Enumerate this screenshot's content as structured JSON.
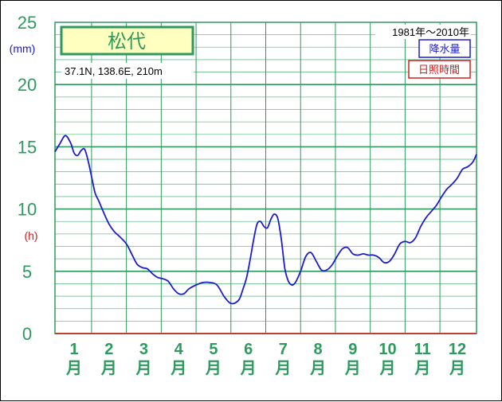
{
  "chart_data": {
    "type": "line",
    "title": "松代",
    "subtitle": "37.1N,  138.6E,  210m",
    "period": "1981年～2010年",
    "legend": [
      "降水量",
      "日照時間"
    ],
    "ylabel_top": "(mm)",
    "ylabel_mid": "(h)",
    "ylim": [
      0,
      25
    ],
    "yticks": [
      "0",
      "5",
      "10",
      "15",
      "20",
      "25"
    ],
    "xticks": [
      {
        "num": "1",
        "unit": "月"
      },
      {
        "num": "2",
        "unit": "月"
      },
      {
        "num": "3",
        "unit": "月"
      },
      {
        "num": "4",
        "unit": "月"
      },
      {
        "num": "5",
        "unit": "月"
      },
      {
        "num": "6",
        "unit": "月"
      },
      {
        "num": "7",
        "unit": "月"
      },
      {
        "num": "8",
        "unit": "月"
      },
      {
        "num": "9",
        "unit": "月"
      },
      {
        "num": "10",
        "unit": "月"
      },
      {
        "num": "11",
        "unit": "月"
      },
      {
        "num": "12",
        "unit": "月"
      }
    ],
    "xlim": [
      0.45,
      12.55
    ],
    "series": [
      {
        "name": "降水量",
        "color": "#1c1cd0",
        "x": [
          0.45,
          0.6,
          0.75,
          0.9,
          1.0,
          1.1,
          1.2,
          1.3,
          1.4,
          1.5,
          1.6,
          1.7,
          1.85,
          2.0,
          2.15,
          2.3,
          2.5,
          2.65,
          2.8,
          2.95,
          3.1,
          3.25,
          3.4,
          3.55,
          3.7,
          3.85,
          4.0,
          4.15,
          4.3,
          4.5,
          4.7,
          4.9,
          5.1,
          5.3,
          5.45,
          5.55,
          5.65,
          5.75,
          5.85,
          5.95,
          6.05,
          6.15,
          6.25,
          6.35,
          6.45,
          6.55,
          6.65,
          6.75,
          6.85,
          6.95,
          7.05,
          7.15,
          7.25,
          7.35,
          7.5,
          7.65,
          7.8,
          7.95,
          8.1,
          8.25,
          8.4,
          8.55,
          8.7,
          8.85,
          9.0,
          9.15,
          9.3,
          9.45,
          9.6,
          9.75,
          9.9,
          10.05,
          10.2,
          10.35,
          10.5,
          10.65,
          10.8,
          10.95,
          11.1,
          11.25,
          11.4,
          11.55,
          11.7,
          11.85,
          12.0,
          12.15,
          12.3,
          12.45,
          12.55
        ],
        "y": [
          14.6,
          15.3,
          15.9,
          15.3,
          14.5,
          14.3,
          14.7,
          14.8,
          13.9,
          12.6,
          11.3,
          10.7,
          9.7,
          8.8,
          8.2,
          7.8,
          7.2,
          6.4,
          5.6,
          5.3,
          5.2,
          4.8,
          4.5,
          4.4,
          4.2,
          3.6,
          3.2,
          3.2,
          3.6,
          3.9,
          4.1,
          4.1,
          3.9,
          3.0,
          2.5,
          2.4,
          2.5,
          2.8,
          3.6,
          4.5,
          5.9,
          7.5,
          8.8,
          9.0,
          8.6,
          8.5,
          9.2,
          9.6,
          9.2,
          7.5,
          5.2,
          4.2,
          3.9,
          4.1,
          5.0,
          6.2,
          6.5,
          5.8,
          5.1,
          5.1,
          5.5,
          6.2,
          6.8,
          6.9,
          6.4,
          6.3,
          6.4,
          6.3,
          6.3,
          6.1,
          5.7,
          5.8,
          6.4,
          7.2,
          7.4,
          7.3,
          7.7,
          8.6,
          9.3,
          9.8,
          10.3,
          11.0,
          11.6,
          12.0,
          12.5,
          13.2,
          13.4,
          13.8,
          14.4
        ]
      }
    ]
  },
  "colors": {
    "grid_major": "#2e9a5e",
    "grid_minor": "#6fbf8e",
    "axis": "#2e9a5e",
    "title_bg": "#ffffc0",
    "title_text": "#2e9a5e",
    "rain_label": "#1c1cd0",
    "sun_label": "#d02020",
    "baseline": "#c04030"
  }
}
